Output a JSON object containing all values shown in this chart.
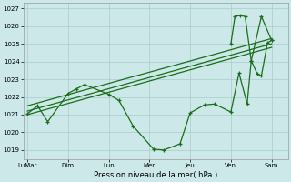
{
  "xlabel": "Pression niveau de la mer( hPa )",
  "background_color": "#cce8e8",
  "grid_color": "#aacccc",
  "line_color": "#1a6e1a",
  "ylim": [
    1018.5,
    1027.3
  ],
  "yticks": [
    1019,
    1020,
    1021,
    1022,
    1023,
    1024,
    1025,
    1026,
    1027
  ],
  "x_labels": [
    "LuMar",
    "Dim",
    "Lun",
    "Mer",
    "Jeu",
    "Ven",
    "Sam"
  ],
  "x_positions": [
    0,
    2,
    4,
    6,
    8,
    10,
    12
  ],
  "xlim": [
    -0.2,
    12.8
  ],
  "trend1": {
    "x": [
      0,
      12
    ],
    "y": [
      1021.0,
      1024.8
    ]
  },
  "trend2": {
    "x": [
      0,
      12
    ],
    "y": [
      1021.2,
      1025.0
    ]
  },
  "trend3": {
    "x": [
      0,
      12
    ],
    "y": [
      1021.5,
      1025.3
    ]
  },
  "main_line": {
    "x": [
      0.0,
      0.5,
      1.0,
      2.0,
      2.4,
      2.8,
      4.0,
      4.5,
      5.2,
      6.2,
      6.7,
      7.5,
      8.0,
      8.7,
      9.2,
      10.0,
      10.4,
      10.8,
      11.0,
      11.5,
      12.0
    ],
    "y": [
      1021.05,
      1021.5,
      1020.6,
      1022.2,
      1022.45,
      1022.7,
      1022.15,
      1021.8,
      1020.35,
      1019.05,
      1019.0,
      1019.35,
      1021.1,
      1021.55,
      1021.6,
      1021.15,
      1023.35,
      1021.6,
      1024.05,
      1026.55,
      1025.2
    ]
  },
  "high_line": {
    "x": [
      10.0,
      10.2,
      10.45,
      10.7,
      11.0,
      11.3,
      11.5,
      11.8,
      12.0
    ],
    "y": [
      1025.0,
      1026.55,
      1026.6,
      1026.55,
      1024.05,
      1023.3,
      1023.2,
      1025.05,
      1025.2
    ]
  }
}
